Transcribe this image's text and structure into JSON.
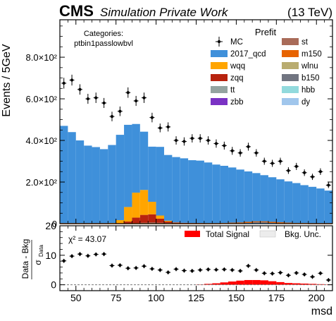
{
  "header": {
    "experiment": "CMS",
    "subtitle": "Simulation Private Work",
    "energy": "(13 TeV)"
  },
  "chart_data": {
    "type": "bar",
    "stacked": true,
    "x_edges_start": 40,
    "bin_width": 5,
    "xlim": [
      40,
      210
    ],
    "ylim": [
      0,
      980
    ],
    "xlabel": "msd",
    "ylabel": "Events / 5GeV",
    "y_ticks": [
      0,
      200,
      400,
      600,
      800
    ],
    "y_tick_labels": [
      "0",
      "2.0×10²",
      "4.0×10²",
      "6.0×10²",
      "8.0×10²"
    ],
    "x_ticks": [
      50,
      75,
      100,
      125,
      150,
      175,
      200
    ],
    "categories_label": "Categories:",
    "category": "ptbin1passlowbvl",
    "legend_title": "Prefit",
    "legend_position": "top-right",
    "data_series": {
      "name": "MC",
      "x": [
        42.5,
        47.5,
        52.5,
        57.5,
        62.5,
        67.5,
        72.5,
        77.5,
        82.5,
        87.5,
        92.5,
        97.5,
        102.5,
        107.5,
        112.5,
        117.5,
        122.5,
        127.5,
        132.5,
        137.5,
        142.5,
        147.5,
        152.5,
        157.5,
        162.5,
        167.5,
        172.5,
        177.5,
        182.5,
        187.5,
        192.5,
        197.5,
        202.5,
        207.5
      ],
      "y": [
        675,
        690,
        645,
        600,
        605,
        580,
        515,
        540,
        630,
        590,
        605,
        510,
        460,
        465,
        400,
        395,
        410,
        410,
        400,
        385,
        375,
        350,
        340,
        370,
        340,
        300,
        290,
        300,
        255,
        275,
        245,
        225,
        250,
        185
      ],
      "yerr": [
        26,
        26,
        25,
        24,
        25,
        24,
        23,
        23,
        25,
        24,
        25,
        23,
        21,
        22,
        20,
        20,
        20,
        20,
        20,
        20,
        19,
        19,
        18,
        19,
        18,
        17,
        17,
        17,
        16,
        17,
        16,
        15,
        16,
        14
      ]
    },
    "series": [
      {
        "name": "zbb",
        "color": "#7a32c4",
        "values": [
          0,
          0,
          0,
          0,
          0,
          0,
          0,
          0,
          0,
          0,
          0,
          0,
          0,
          0,
          0,
          0,
          0,
          0,
          0,
          0,
          0,
          0,
          0,
          0,
          0,
          0,
          0,
          0,
          0,
          0,
          0,
          0,
          0,
          0
        ]
      },
      {
        "name": "tt",
        "color": "#94a3a0",
        "values": [
          0,
          0,
          0,
          0,
          0,
          0,
          0,
          0,
          0,
          2,
          4,
          5,
          4,
          3,
          2,
          2,
          2,
          2,
          2,
          2,
          2,
          2,
          2,
          1,
          1,
          1,
          1,
          1,
          1,
          1,
          1,
          1,
          1,
          1
        ]
      },
      {
        "name": "zqq",
        "color": "#b8230f",
        "values": [
          0,
          0,
          0,
          0,
          0,
          0,
          0,
          2,
          10,
          27,
          38,
          40,
          20,
          7,
          3,
          2,
          1,
          1,
          0,
          0,
          0,
          0,
          0,
          0,
          0,
          0,
          0,
          0,
          0,
          0,
          0,
          0,
          0,
          0
        ]
      },
      {
        "name": "wqq",
        "color": "#ffa500",
        "values": [
          0,
          0,
          0,
          0,
          0,
          0,
          3,
          15,
          70,
          120,
          120,
          60,
          15,
          4,
          1,
          0,
          0,
          0,
          0,
          0,
          0,
          0,
          0,
          0,
          0,
          0,
          0,
          0,
          0,
          0,
          0,
          0,
          0,
          0
        ]
      },
      {
        "name": "2017_qcd",
        "color": "#3f90da",
        "values": [
          470,
          440,
          400,
          375,
          368,
          358,
          375,
          410,
          395,
          330,
          280,
          265,
          330,
          316,
          314,
          310,
          302,
          300,
          292,
          282,
          276,
          268,
          258,
          250,
          242,
          232,
          222,
          212,
          202,
          194,
          184,
          176,
          168,
          158
        ]
      }
    ],
    "signal_series": [
      {
        "name": "m150",
        "color": "#e76300",
        "values": [
          0,
          0,
          0,
          0,
          0,
          0,
          0,
          0,
          0,
          0,
          0,
          0,
          0,
          0,
          0,
          0,
          0,
          0,
          0,
          0,
          1,
          2,
          3,
          6,
          8,
          8,
          6,
          4,
          2,
          1,
          1,
          0,
          0,
          0
        ]
      }
    ],
    "legend": [
      "MC",
      "2017_qcd",
      "wqq",
      "zqq",
      "tt",
      "zbb",
      "st",
      "m150",
      "wlnu",
      "b150",
      "hbb",
      "dy"
    ],
    "legend_colors": {
      "2017_qcd": "#3f90da",
      "wqq": "#ffa500",
      "zqq": "#b8230f",
      "tt": "#94a3a0",
      "zbb": "#7a32c4",
      "st": "#a96b59",
      "m150": "#e76300",
      "wlnu": "#b9ac70",
      "b150": "#717581",
      "hbb": "#92dadd",
      "dy": "#a0c6ec"
    },
    "ratio_panel": {
      "ylabel_top": "Data - Bkg",
      "ylabel_bottom": "σ",
      "ylabel_sub": "Data",
      "ylim": [
        -2,
        20
      ],
      "y_ticks": [
        0,
        10,
        20
      ],
      "chi2_label": "χ² = 43.07",
      "legend_signal": "Total Signal",
      "legend_unc": "Bkg. Unc.",
      "signal_color": "#ff0000",
      "points": [
        8.1,
        9.7,
        10.4,
        9.8,
        10.3,
        10.4,
        6.5,
        6.6,
        5.6,
        5.7,
        6.3,
        5.4,
        5.0,
        4.2,
        5.3,
        4.8,
        4.7,
        5.0,
        5.2,
        5.1,
        5.2,
        5.0,
        4.7,
        6.4,
        5.0,
        3.9,
        3.8,
        4.1,
        3.2,
        4.0,
        3.5,
        2.7,
        3.9,
        1.6
      ],
      "yerr": [
        0.7,
        0.7,
        0.7,
        0.7,
        0.7,
        0.7,
        0.7,
        0.7,
        0.7,
        0.7,
        0.7,
        0.7,
        0.7,
        0.7,
        0.7,
        0.7,
        0.7,
        0.7,
        0.7,
        0.7,
        0.7,
        0.7,
        0.7,
        0.7,
        0.7,
        0.7,
        0.7,
        0.7,
        0.7,
        0.7,
        0.7,
        0.7,
        0.7,
        0.7
      ],
      "signal": [
        0,
        0,
        0,
        0,
        0,
        0,
        0,
        0,
        0,
        0,
        0,
        0,
        0,
        0,
        0,
        0,
        0,
        0.1,
        0.3,
        0.5,
        0.8,
        1.1,
        1.4,
        1.6,
        1.6,
        1.5,
        1.2,
        0.9,
        0.6,
        0.5,
        0.4,
        0.3,
        0.2,
        0.1
      ]
    }
  }
}
